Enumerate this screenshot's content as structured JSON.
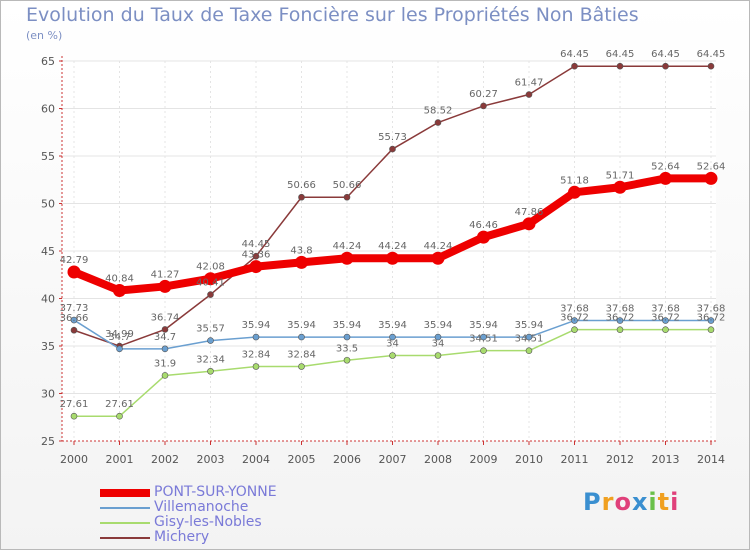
{
  "title": "Evolution du Taux de Taxe Foncière sur les Propriétés Non Bâties",
  "unit_label": "(en %)",
  "logo": "Proxiti",
  "colors": {
    "title": "#7c8fc3",
    "legend_text": "#7a7ad8",
    "axis": "#cc3333"
  },
  "chart_data": {
    "type": "line",
    "title": "Evolution du Taux de Taxe Foncière sur les Propriétés Non Bâties",
    "ylabel": "(en %)",
    "ylim": [
      25,
      65
    ],
    "yticks": [
      25,
      30,
      35,
      40,
      45,
      50,
      55,
      60,
      65
    ],
    "grid": true,
    "legend_position": "bottom-left",
    "x": [
      "2000",
      "2001",
      "2002",
      "2003",
      "2004",
      "2005",
      "2006",
      "2007",
      "2008",
      "2009",
      "2010",
      "2011",
      "2012",
      "2013",
      "2014"
    ],
    "series": [
      {
        "name": "PONT-SUR-YONNE",
        "color": "#ee0000",
        "width": 8,
        "values": [
          42.79,
          40.84,
          41.27,
          42.08,
          43.36,
          43.8,
          44.24,
          44.24,
          44.24,
          46.46,
          47.86,
          51.18,
          51.71,
          52.64,
          52.64
        ],
        "labels": [
          "42.79",
          "40.84",
          "41.27",
          "42.08",
          "43.36",
          "43.8",
          "44.24",
          "44.24",
          "44.24",
          "46.46",
          "47.86",
          "51.18",
          "51.71",
          "52.64",
          "52.64"
        ]
      },
      {
        "name": "Villemanoche",
        "color": "#6a9fd0",
        "width": 1.5,
        "values": [
          37.73,
          34.7,
          34.7,
          35.57,
          35.94,
          35.94,
          35.94,
          35.94,
          35.94,
          35.94,
          35.94,
          37.68,
          37.68,
          37.68,
          37.68
        ],
        "labels": [
          "37.73",
          "34.7",
          "34.7",
          "35.57",
          "35.94",
          "35.94",
          "35.94",
          "35.94",
          "35.94",
          "35.94",
          "35.94",
          "37.68",
          "37.68",
          "37.68",
          "37.68"
        ]
      },
      {
        "name": "Gisy-les-Nobles",
        "color": "#a8db6e",
        "width": 1.5,
        "values": [
          27.61,
          27.61,
          31.9,
          32.34,
          32.84,
          32.84,
          33.5,
          34,
          34,
          34.51,
          34.51,
          36.72,
          36.72,
          36.72,
          36.72
        ],
        "labels": [
          "27.61",
          "27.61",
          "31.9",
          "32.34",
          "32.84",
          "32.84",
          "33.5",
          "34",
          "34",
          "34.51",
          "34.51",
          "36.72",
          "36.72",
          "36.72",
          "36.72"
        ]
      },
      {
        "name": "Michery",
        "color": "#8a3a3a",
        "width": 1.5,
        "values": [
          36.66,
          34.99,
          36.74,
          40.41,
          44.45,
          50.66,
          50.66,
          55.73,
          58.52,
          60.27,
          61.47,
          64.45,
          64.45,
          64.45,
          64.45
        ],
        "labels": [
          "36.66",
          "34.99",
          "36.74",
          "40.41",
          "44.45",
          "50.66",
          "50.66",
          "55.73",
          "58.52",
          "60.27",
          "61.47",
          "64.45",
          "64.45",
          "64.45",
          "64.45"
        ]
      }
    ]
  }
}
